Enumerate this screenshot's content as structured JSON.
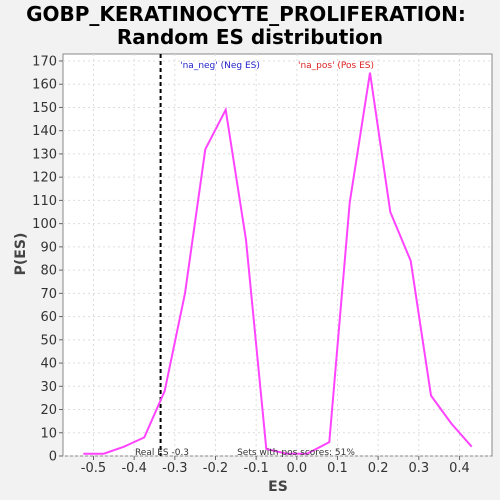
{
  "chart_data": {
    "type": "line",
    "title": "GOBP_KERATINOCYTE_PROLIFERATION:",
    "subtitle": "Random ES distribution",
    "xlabel": "ES",
    "ylabel": "P(ES)",
    "xlim": [
      -0.575,
      0.48
    ],
    "ylim": [
      0,
      173
    ],
    "x_ticks": [
      "-0.5",
      "-0.4",
      "-0.3",
      "-0.2",
      "-0.1",
      "0.0",
      "0.1",
      "0.2",
      "0.3",
      "0.4"
    ],
    "x_tick_values": [
      -0.5,
      -0.4,
      -0.3,
      -0.2,
      -0.1,
      0.0,
      0.1,
      0.2,
      0.3,
      0.4
    ],
    "y_ticks": [
      "0",
      "10",
      "20",
      "30",
      "40",
      "50",
      "60",
      "70",
      "80",
      "90",
      "100",
      "110",
      "120",
      "130",
      "140",
      "150",
      "160",
      "170"
    ],
    "y_tick_values": [
      0,
      10,
      20,
      30,
      40,
      50,
      60,
      70,
      80,
      90,
      100,
      110,
      120,
      130,
      140,
      150,
      160,
      170
    ],
    "grid": true,
    "series": [
      {
        "color": "#ff44ff",
        "points": [
          [
            -0.525,
            1
          ],
          [
            -0.475,
            1
          ],
          [
            -0.425,
            4
          ],
          [
            -0.375,
            8
          ],
          [
            -0.325,
            28
          ],
          [
            -0.275,
            70
          ],
          [
            -0.225,
            132
          ],
          [
            -0.175,
            149
          ],
          [
            -0.125,
            93
          ],
          [
            -0.075,
            3
          ],
          [
            -0.025,
            1
          ],
          [
            0.025,
            1
          ],
          [
            0.08,
            6
          ],
          [
            0.13,
            109
          ],
          [
            0.18,
            165
          ],
          [
            0.23,
            105
          ],
          [
            0.28,
            84
          ],
          [
            0.33,
            26
          ],
          [
            0.38,
            14
          ],
          [
            0.43,
            4
          ]
        ]
      }
    ],
    "real_es": -0.335,
    "annotations": {
      "neg_label": "'na_neg' (Neg ES)",
      "pos_label": "'na_pos' (Pos ES)",
      "real_es_label": "Real ES -0.3",
      "pos_scores_label": "Sets with pos scores: 51%"
    },
    "colors": {
      "line": "#ff44ff",
      "neg_label": "#2222cc",
      "pos_label": "#dd2222",
      "grid": "#dddddd"
    }
  }
}
